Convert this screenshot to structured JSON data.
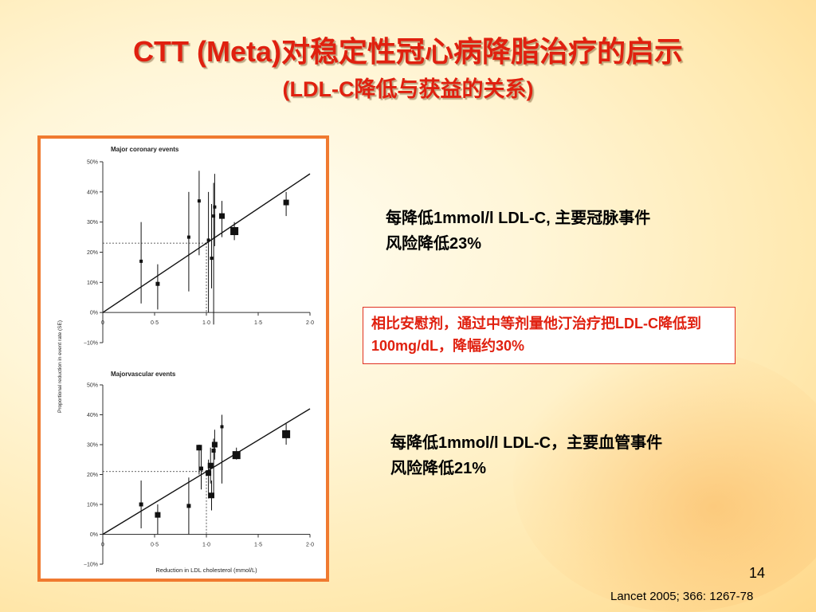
{
  "slide": {
    "title_line1": "CTT (Meta)对稳定性冠心病降脂治疗的启示",
    "title_line2": "(LDL-C降低与获益的关系)",
    "note_top": "每降低1mmol/l LDL-C, 主要冠脉事件风险降低23%",
    "callout": "相比安慰剂，通过中等剂量他汀治疗把LDL-C降低到100mg/dL，降幅约30%",
    "note_bottom": "每降低1mmol/l LDL-C，主要血管事件风险降低21%",
    "page_number": "14",
    "reference": "Lancet 2005; 366: 1267-78"
  },
  "chart_data": [
    {
      "type": "scatter",
      "title": "Major coronary events",
      "ylabel": "Proportional reduction in event rate (SE)",
      "xlabel": "",
      "xlim": [
        0,
        2.0
      ],
      "ylim": [
        -10,
        50
      ],
      "xticks": [
        "0",
        "0·5",
        "1·0",
        "1·5",
        "2·0"
      ],
      "yticks": [
        "−10%",
        "0%",
        "10%",
        "20%",
        "30%",
        "40%",
        "50%"
      ],
      "points": [
        {
          "x": 0.37,
          "y": 17,
          "lo": 3,
          "hi": 30
        },
        {
          "x": 0.53,
          "y": 9.5,
          "lo": 1,
          "hi": 16
        },
        {
          "x": 0.83,
          "y": 25,
          "lo": 7,
          "hi": 40
        },
        {
          "x": 0.93,
          "y": 37,
          "lo": 19,
          "hi": 47
        },
        {
          "x": 1.02,
          "y": 24,
          "lo": 0,
          "hi": 40
        },
        {
          "x": 1.05,
          "y": 18,
          "lo": 8,
          "hi": 36
        },
        {
          "x": 1.07,
          "y": 32,
          "lo": -4,
          "hi": 43
        },
        {
          "x": 1.08,
          "y": 35,
          "lo": 22,
          "hi": 46
        },
        {
          "x": 1.15,
          "y": 32,
          "lo": 25,
          "hi": 37
        },
        {
          "x": 1.27,
          "y": 27,
          "lo": 24,
          "hi": 30
        },
        {
          "x": 1.77,
          "y": 36.5,
          "lo": 32,
          "hi": 40
        }
      ],
      "fit_line": [
        [
          0,
          0
        ],
        [
          2.0,
          46
        ]
      ],
      "reference": {
        "x": 1.0,
        "y": 23
      }
    },
    {
      "type": "scatter",
      "title": "Majorvascular events",
      "ylabel": "",
      "xlabel": "Reduction in LDL cholesterol (mmol/L)",
      "xlim": [
        0,
        2.0
      ],
      "ylim": [
        -10,
        50
      ],
      "xticks": [
        "0",
        "0·5",
        "1·0",
        "1·5",
        "2·0"
      ],
      "yticks": [
        "−10%",
        "0%",
        "10%",
        "20%",
        "30%",
        "40%",
        "50%"
      ],
      "points": [
        {
          "x": 0.37,
          "y": 10,
          "lo": 2,
          "hi": 18
        },
        {
          "x": 0.53,
          "y": 6.5,
          "lo": 0,
          "hi": 10
        },
        {
          "x": 0.83,
          "y": 9.5,
          "lo": 0,
          "hi": 19
        },
        {
          "x": 0.93,
          "y": 29,
          "lo": 20,
          "hi": 30
        },
        {
          "x": 0.95,
          "y": 22,
          "lo": 15,
          "hi": 29
        },
        {
          "x": 1.02,
          "y": 20.5,
          "lo": 12,
          "hi": 25
        },
        {
          "x": 1.04,
          "y": 23,
          "lo": 17,
          "hi": 29
        },
        {
          "x": 1.05,
          "y": 13,
          "lo": 8,
          "hi": 18
        },
        {
          "x": 1.07,
          "y": 28,
          "lo": 13,
          "hi": 32
        },
        {
          "x": 1.08,
          "y": 30,
          "lo": 25,
          "hi": 35
        },
        {
          "x": 1.15,
          "y": 36,
          "lo": 17,
          "hi": 40
        },
        {
          "x": 1.29,
          "y": 26.5,
          "lo": 25,
          "hi": 29
        },
        {
          "x": 1.77,
          "y": 33.5,
          "lo": 30,
          "hi": 37
        }
      ],
      "fit_line": [
        [
          0,
          0
        ],
        [
          2.0,
          42
        ]
      ],
      "reference": {
        "x": 1.0,
        "y": 21
      }
    }
  ]
}
